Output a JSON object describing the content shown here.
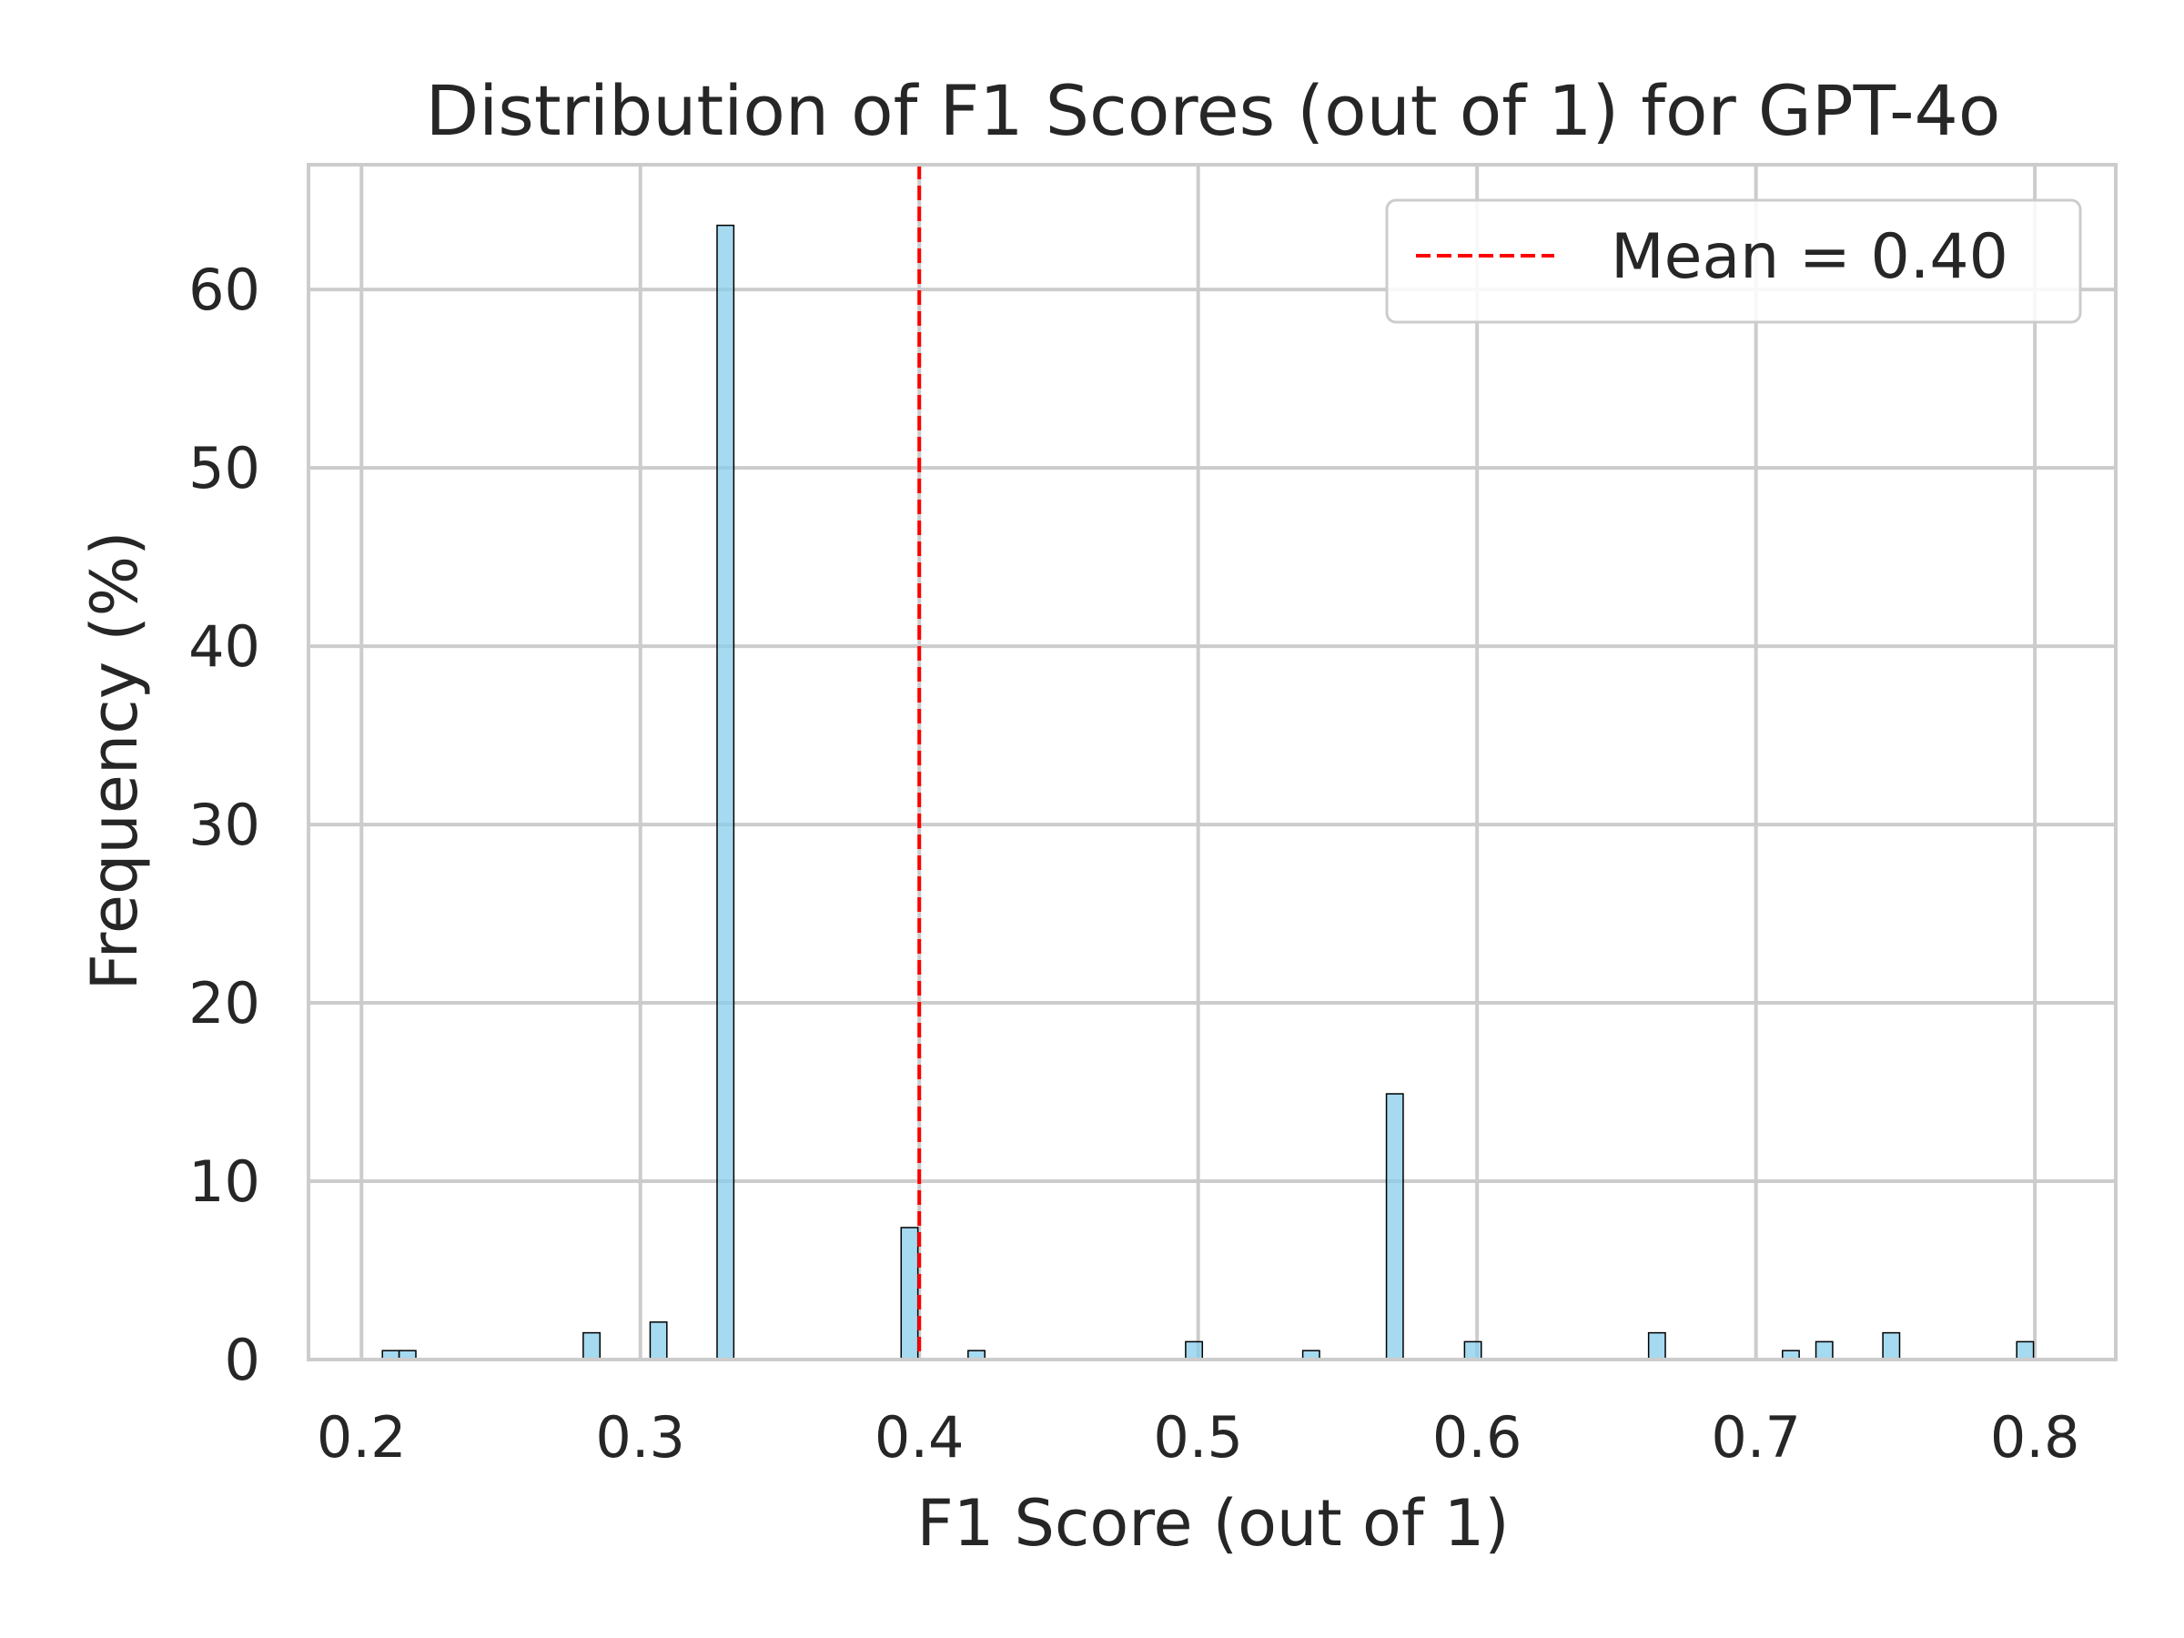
{
  "chart_data": {
    "type": "bar",
    "title": "Distribution of F1 Scores (out of 1) for GPT-4o",
    "xlabel": "F1 Score (out of 1)",
    "ylabel": "Frequency (%)",
    "xlim": [
      0.181,
      0.829
    ],
    "ylim": [
      0,
      67
    ],
    "xticks": [
      0.2,
      0.3,
      0.4,
      0.5,
      0.6,
      0.7,
      0.8
    ],
    "xtick_labels": [
      "0.2",
      "0.3",
      "0.4",
      "0.5",
      "0.6",
      "0.7",
      "0.8"
    ],
    "yticks": [
      0,
      10,
      20,
      30,
      40,
      50,
      60
    ],
    "ytick_labels": [
      "0",
      "10",
      "20",
      "30",
      "40",
      "50",
      "60"
    ],
    "grid": true,
    "bar_color": "#87ceeb",
    "bar_edge_color": "#000000",
    "bin_width": 0.006,
    "bins": [
      {
        "x": 0.2105,
        "value": 0.5
      },
      {
        "x": 0.2165,
        "value": 0.5
      },
      {
        "x": 0.2825,
        "value": 1.5
      },
      {
        "x": 0.3065,
        "value": 2.1
      },
      {
        "x": 0.3305,
        "value": 63.6
      },
      {
        "x": 0.3965,
        "value": 7.4
      },
      {
        "x": 0.4205,
        "value": 0.5
      },
      {
        "x": 0.4985,
        "value": 1.0
      },
      {
        "x": 0.5405,
        "value": 0.5
      },
      {
        "x": 0.5705,
        "value": 14.9
      },
      {
        "x": 0.5985,
        "value": 1.0
      },
      {
        "x": 0.6645,
        "value": 1.5
      },
      {
        "x": 0.7125,
        "value": 0.5
      },
      {
        "x": 0.7245,
        "value": 1.0
      },
      {
        "x": 0.7485,
        "value": 1.5
      },
      {
        "x": 0.7965,
        "value": 1.0
      }
    ],
    "mean_line": {
      "x": 0.4,
      "color": "#ff0000",
      "label": "Mean = 0.40"
    },
    "legend_position": "top-right"
  }
}
